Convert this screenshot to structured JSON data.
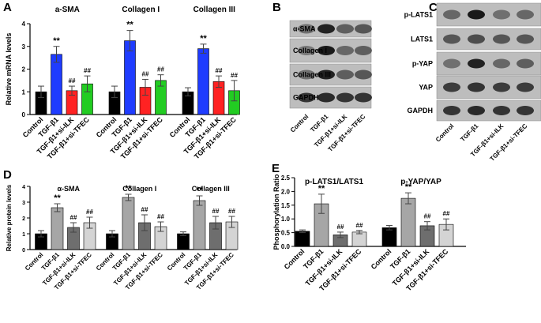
{
  "chart_data": [
    {
      "type": "bar",
      "panel_label": "A",
      "y_label": "Relative mRNA levels",
      "categories": [
        "a-SMA",
        "Collagen I",
        "Collagen III"
      ],
      "series": [
        {
          "name": "Control",
          "color": "#000000",
          "values": [
            1.0,
            1.0,
            1.0
          ],
          "errors": [
            0.25,
            0.25,
            0.18
          ]
        },
        {
          "name": "TGF-β1",
          "color": "#1f3cff",
          "values": [
            2.65,
            3.25,
            2.9
          ],
          "errors": [
            0.35,
            0.45,
            0.2
          ],
          "significance": [
            "**",
            "**",
            "**"
          ]
        },
        {
          "name": "TGF-β1+si-ILK",
          "color": "#ff2222",
          "values": [
            1.05,
            1.2,
            1.45
          ],
          "errors": [
            0.2,
            0.35,
            0.25
          ],
          "significance": [
            "##",
            "##",
            "##"
          ]
        },
        {
          "name": "TGF-β1+si-TFEC",
          "color": "#22cc22",
          "values": [
            1.35,
            1.5,
            1.05
          ],
          "errors": [
            0.35,
            0.25,
            0.45
          ],
          "significance": [
            "##",
            "##",
            "##"
          ]
        }
      ],
      "ylim": [
        0,
        4
      ],
      "yticks": [
        0,
        1,
        2,
        3,
        4
      ]
    },
    {
      "type": "bar",
      "panel_label": "D",
      "y_label": "Relative protein levels",
      "categories": [
        "α-SMA",
        "Collagen I",
        "Collagen III"
      ],
      "series": [
        {
          "name": "Control",
          "color": "#000000",
          "values": [
            1.0,
            1.0,
            1.0
          ],
          "errors": [
            0.2,
            0.2,
            0.12
          ]
        },
        {
          "name": "TGF-β1",
          "color": "#a6a6a6",
          "values": [
            2.65,
            3.3,
            3.1
          ],
          "errors": [
            0.25,
            0.2,
            0.3
          ],
          "significance": [
            "**",
            "**",
            "**"
          ]
        },
        {
          "name": "TGF-β1+si-ILK",
          "color": "#6e6e6e",
          "values": [
            1.4,
            1.7,
            1.7
          ],
          "errors": [
            0.3,
            0.5,
            0.4
          ],
          "significance": [
            "##",
            "##",
            "##"
          ]
        },
        {
          "name": "TGF-β1+si-TFEC",
          "color": "#d4d4d4",
          "values": [
            1.7,
            1.45,
            1.75
          ],
          "errors": [
            0.35,
            0.3,
            0.35
          ],
          "significance": [
            "##",
            "##",
            "##"
          ]
        }
      ],
      "ylim": [
        0,
        4
      ],
      "yticks": [
        0,
        1,
        2,
        3,
        4
      ]
    },
    {
      "type": "bar",
      "panel_label": "E",
      "y_label": "Phosphorylation Ratio",
      "categories": [
        "p-LATS1/LATS1",
        "p-YAP/YAP"
      ],
      "series": [
        {
          "name": "Control",
          "color": "#000000",
          "values": [
            0.55,
            0.68
          ],
          "errors": [
            0.05,
            0.08
          ]
        },
        {
          "name": "TGF-β1",
          "color": "#a6a6a6",
          "values": [
            1.55,
            1.75
          ],
          "errors": [
            0.35,
            0.2
          ],
          "significance": [
            "**",
            "**"
          ]
        },
        {
          "name": "TGF-β1+si-ILK",
          "color": "#6e6e6e",
          "values": [
            0.42,
            0.75
          ],
          "errors": [
            0.1,
            0.15
          ],
          "significance": [
            "##",
            "##"
          ]
        },
        {
          "name": "TGF-β1+si-TFEC",
          "color": "#d4d4d4",
          "values": [
            0.52,
            0.8
          ],
          "errors": [
            0.06,
            0.2
          ],
          "significance": [
            "##",
            "##"
          ]
        }
      ],
      "ylim": [
        0,
        2.5
      ],
      "yticks": [
        {
          "value": 0,
          "label": "0.0"
        },
        0.5,
        {
          "value": 1,
          "label": "1.0"
        },
        1.5,
        {
          "value": 2,
          "label": "2.0"
        },
        2.5
      ]
    }
  ],
  "blots": [
    {
      "panel_label": "B",
      "rows": [
        "α-SMA",
        "Collagen I",
        "Collagen III",
        "GAPDH"
      ],
      "lanes": [
        "Control",
        "TGF-β1",
        "TGF-β1+si-ILK",
        "TGF-β1+si-TFEC"
      ]
    },
    {
      "panel_label": "C",
      "rows": [
        "p-LATS1",
        "LATS1",
        "p-YAP",
        "YAP",
        "GAPDH"
      ],
      "lanes": [
        "Control",
        "TGF-β1",
        "TGF-β1+si-ILK",
        "TGF-β1+si-TFEC"
      ]
    }
  ]
}
